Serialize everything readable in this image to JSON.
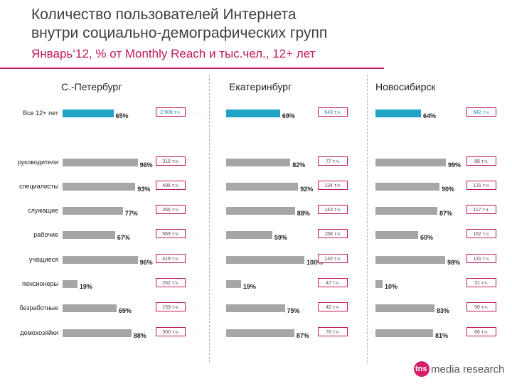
{
  "header": {
    "title_line1": "Количество пользователей Интернета",
    "title_line2": "внутри социально-демографических групп",
    "subtitle": "Январь‘12, % от Monthly Reach и тыс.чел., 12+ лет"
  },
  "logo": {
    "mark": "tns",
    "text": "media research"
  },
  "chart_data": {
    "type": "bar",
    "orientation": "horizontal",
    "title": "Количество пользователей Интернета внутри социально-демографических групп",
    "subtitle": "Январь‘12, % от Monthly Reach и тыс.чел., 12+ лет",
    "xlim": [
      0,
      100
    ],
    "categories": [
      "Все 12+ лет",
      "руководители",
      "специалисты",
      "служащие",
      "рабочие",
      "учащиеся",
      "пенсионеры",
      "безработные",
      "домохозяйки"
    ],
    "series": [
      {
        "name": "С.-Петербург",
        "values": [
          65,
          96,
          93,
          77,
          67,
          96,
          19,
          69,
          88
        ],
        "labels": [
          "65%",
          "96%",
          "93%",
          "77%",
          "67%",
          "96%",
          "19%",
          "69%",
          "88%"
        ],
        "abs_labels": [
          "2 608 т.ч.",
          "315 т.ч.",
          "496 т.ч.",
          "356 т.ч.",
          "569 т.ч.",
          "419 т.ч.",
          "262 т.ч.",
          "159 т.ч.",
          "300 т.ч."
        ]
      },
      {
        "name": "Екатеринбург",
        "values": [
          69,
          82,
          92,
          88,
          59,
          100,
          19,
          75,
          87
        ],
        "labels": [
          "69%",
          "82%",
          "92%",
          "88%",
          "59%",
          "100%",
          "19%",
          "75%",
          "87%"
        ],
        "abs_labels": [
          "643 т.ч.",
          "77 т.ч.",
          "134 т.ч.",
          "143 т.ч.",
          "158 т.ч.",
          "140 т.ч.",
          "47 т.ч.",
          "42 т.ч.",
          "76 т.ч."
        ]
      },
      {
        "name": "Новосибирск",
        "values": [
          64,
          99,
          90,
          87,
          60,
          98,
          10,
          83,
          81
        ],
        "labels": [
          "64%",
          "99%",
          "90%",
          "87%",
          "60%",
          "98%",
          "10%",
          "83%",
          "81%"
        ],
        "abs_labels": [
          "642 т.ч.",
          "88 т.ч.",
          "131 т.ч.",
          "117 т.ч.",
          "162 т.ч.",
          "131 т.ч.",
          "31 т.ч.",
          "50 т.ч.",
          "66 т.ч."
        ]
      }
    ]
  }
}
